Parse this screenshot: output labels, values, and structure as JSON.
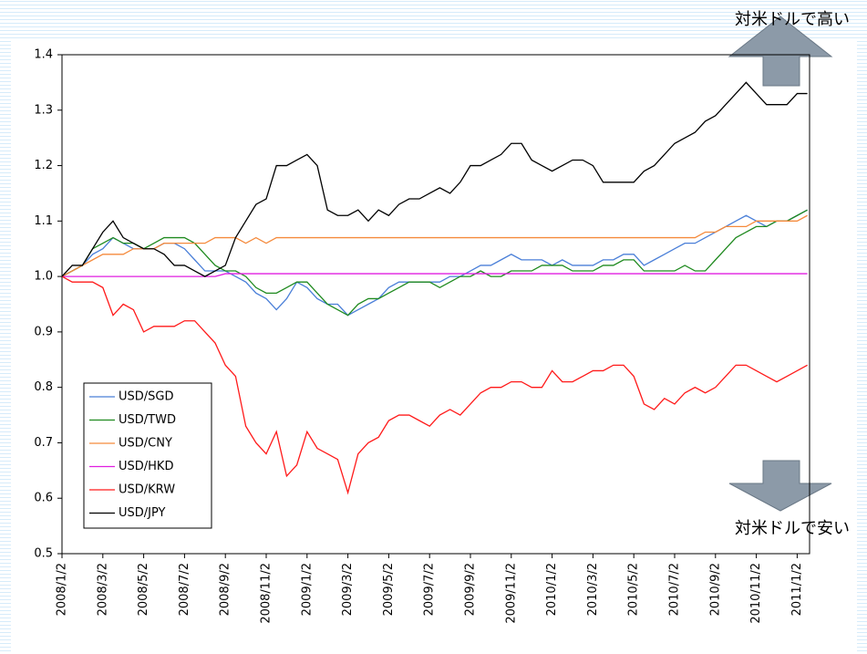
{
  "chart_data": {
    "type": "line",
    "categories": [
      "2008/1/2",
      null,
      null,
      null,
      "2008/3/2",
      null,
      null,
      null,
      "2008/5/2",
      null,
      null,
      null,
      "2008/7/2",
      null,
      null,
      null,
      "2008/9/2",
      null,
      null,
      null,
      "2008/11/2",
      null,
      null,
      null,
      "2009/1/2",
      null,
      null,
      null,
      "2009/3/2",
      null,
      null,
      null,
      "2009/5/2",
      null,
      null,
      null,
      "2009/7/2",
      null,
      null,
      null,
      "2009/9/2",
      null,
      null,
      null,
      "2009/11/2",
      null,
      null,
      null,
      "2010/1/2",
      null,
      null,
      null,
      "2010/3/2",
      null,
      null,
      null,
      "2010/5/2",
      null,
      null,
      null,
      "2010/7/2",
      null,
      null,
      null,
      "2010/9/2",
      null,
      null,
      null,
      "2010/11/2",
      null,
      null,
      null,
      "2011/1/2",
      null
    ],
    "ylim": [
      0.5,
      1.4
    ],
    "yticks": [
      0.5,
      0.6,
      0.7,
      0.8,
      0.9,
      {
        "value": 1,
        "label": "1.0"
      },
      1.1,
      1.2,
      1.3,
      1.4
    ],
    "legend": "lower left",
    "annotations": [
      "対米ドルで高い",
      "対米ドルで安い"
    ],
    "series": [
      {
        "name": "USD/SGD",
        "color": "#4a7fd8",
        "values": [
          1.0,
          1.01,
          1.02,
          1.04,
          1.05,
          1.07,
          1.06,
          1.05,
          1.05,
          1.05,
          1.06,
          1.06,
          1.05,
          1.03,
          1.01,
          1.01,
          1.01,
          1.0,
          0.99,
          0.97,
          0.96,
          0.94,
          0.96,
          0.99,
          0.98,
          0.96,
          0.95,
          0.95,
          0.93,
          0.94,
          0.95,
          0.96,
          0.98,
          0.99,
          0.99,
          0.99,
          0.99,
          0.99,
          1.0,
          1.0,
          1.01,
          1.02,
          1.02,
          1.03,
          1.04,
          1.03,
          1.03,
          1.03,
          1.02,
          1.03,
          1.02,
          1.02,
          1.02,
          1.03,
          1.03,
          1.04,
          1.04,
          1.02,
          1.03,
          1.04,
          1.05,
          1.06,
          1.06,
          1.07,
          1.08,
          1.09,
          1.1,
          1.11,
          1.1,
          1.09,
          1.1,
          1.1,
          1.11,
          1.12
        ]
      },
      {
        "name": "USD/TWD",
        "color": "#1f8a1f",
        "values": [
          1.0,
          1.01,
          1.02,
          1.05,
          1.06,
          1.07,
          1.06,
          1.06,
          1.05,
          1.06,
          1.07,
          1.07,
          1.07,
          1.06,
          1.04,
          1.02,
          1.01,
          1.01,
          1.0,
          0.98,
          0.97,
          0.97,
          0.98,
          0.99,
          0.99,
          0.97,
          0.95,
          0.94,
          0.93,
          0.95,
          0.96,
          0.96,
          0.97,
          0.98,
          0.99,
          0.99,
          0.99,
          0.98,
          0.99,
          1.0,
          1.0,
          1.01,
          1.0,
          1.0,
          1.01,
          1.01,
          1.01,
          1.02,
          1.02,
          1.02,
          1.01,
          1.01,
          1.01,
          1.02,
          1.02,
          1.03,
          1.03,
          1.01,
          1.01,
          1.01,
          1.01,
          1.02,
          1.01,
          1.01,
          1.03,
          1.05,
          1.07,
          1.08,
          1.09,
          1.09,
          1.1,
          1.1,
          1.11,
          1.12
        ]
      },
      {
        "name": "USD/CNY",
        "color": "#f58a3c",
        "values": [
          1.0,
          1.01,
          1.02,
          1.03,
          1.04,
          1.04,
          1.04,
          1.05,
          1.05,
          1.05,
          1.06,
          1.06,
          1.06,
          1.06,
          1.06,
          1.07,
          1.07,
          1.07,
          1.06,
          1.07,
          1.06,
          1.07,
          1.07,
          1.07,
          1.07,
          1.07,
          1.07,
          1.07,
          1.07,
          1.07,
          1.07,
          1.07,
          1.07,
          1.07,
          1.07,
          1.07,
          1.07,
          1.07,
          1.07,
          1.07,
          1.07,
          1.07,
          1.07,
          1.07,
          1.07,
          1.07,
          1.07,
          1.07,
          1.07,
          1.07,
          1.07,
          1.07,
          1.07,
          1.07,
          1.07,
          1.07,
          1.07,
          1.07,
          1.07,
          1.07,
          1.07,
          1.07,
          1.07,
          1.08,
          1.08,
          1.09,
          1.09,
          1.09,
          1.1,
          1.1,
          1.1,
          1.1,
          1.1,
          1.11
        ]
      },
      {
        "name": "USD/HKD",
        "color": "#e01ee0",
        "values": [
          1.0,
          1.0,
          1.0,
          1.0,
          1.0,
          1.0,
          1.0,
          1.0,
          1.0,
          1.0,
          1.0,
          1.0,
          1.0,
          1.0,
          1.0,
          1.0,
          1.005,
          1.005,
          1.005,
          1.005,
          1.005,
          1.005,
          1.005,
          1.005,
          1.005,
          1.005,
          1.005,
          1.005,
          1.005,
          1.005,
          1.005,
          1.005,
          1.005,
          1.005,
          1.005,
          1.005,
          1.005,
          1.005,
          1.005,
          1.005,
          1.005,
          1.005,
          1.005,
          1.005,
          1.005,
          1.005,
          1.005,
          1.005,
          1.005,
          1.005,
          1.005,
          1.005,
          1.005,
          1.005,
          1.005,
          1.005,
          1.005,
          1.005,
          1.005,
          1.005,
          1.005,
          1.005,
          1.005,
          1.005,
          1.005,
          1.005,
          1.005,
          1.005,
          1.005,
          1.005,
          1.005,
          1.005,
          1.005,
          1.005
        ]
      },
      {
        "name": "USD/KRW",
        "color": "#ff1a1a",
        "values": [
          1.0,
          0.99,
          0.99,
          0.99,
          0.98,
          0.93,
          0.95,
          0.94,
          0.9,
          0.91,
          0.91,
          0.91,
          0.92,
          0.92,
          0.9,
          0.88,
          0.84,
          0.82,
          0.73,
          0.7,
          0.68,
          0.72,
          0.64,
          0.66,
          0.72,
          0.69,
          0.68,
          0.67,
          0.61,
          0.68,
          0.7,
          0.71,
          0.74,
          0.75,
          0.75,
          0.74,
          0.73,
          0.75,
          0.76,
          0.75,
          0.77,
          0.79,
          0.8,
          0.8,
          0.81,
          0.81,
          0.8,
          0.8,
          0.83,
          0.81,
          0.81,
          0.82,
          0.83,
          0.83,
          0.84,
          0.84,
          0.82,
          0.77,
          0.76,
          0.78,
          0.77,
          0.79,
          0.8,
          0.79,
          0.8,
          0.82,
          0.84,
          0.84,
          0.83,
          0.82,
          0.81,
          0.82,
          0.83,
          0.84
        ]
      },
      {
        "name": "USD/JPY",
        "color": "#000000",
        "values": [
          1.0,
          1.02,
          1.02,
          1.05,
          1.08,
          1.1,
          1.07,
          1.06,
          1.05,
          1.05,
          1.04,
          1.02,
          1.02,
          1.01,
          1.0,
          1.01,
          1.02,
          1.07,
          1.1,
          1.13,
          1.14,
          1.2,
          1.2,
          1.21,
          1.22,
          1.2,
          1.12,
          1.11,
          1.11,
          1.12,
          1.1,
          1.12,
          1.11,
          1.13,
          1.14,
          1.14,
          1.15,
          1.16,
          1.15,
          1.17,
          1.2,
          1.2,
          1.21,
          1.22,
          1.24,
          1.24,
          1.21,
          1.2,
          1.19,
          1.2,
          1.21,
          1.21,
          1.2,
          1.17,
          1.17,
          1.17,
          1.17,
          1.19,
          1.2,
          1.22,
          1.24,
          1.25,
          1.26,
          1.28,
          1.29,
          1.31,
          1.33,
          1.35,
          1.33,
          1.31,
          1.31,
          1.31,
          1.33,
          1.33
        ]
      }
    ]
  }
}
